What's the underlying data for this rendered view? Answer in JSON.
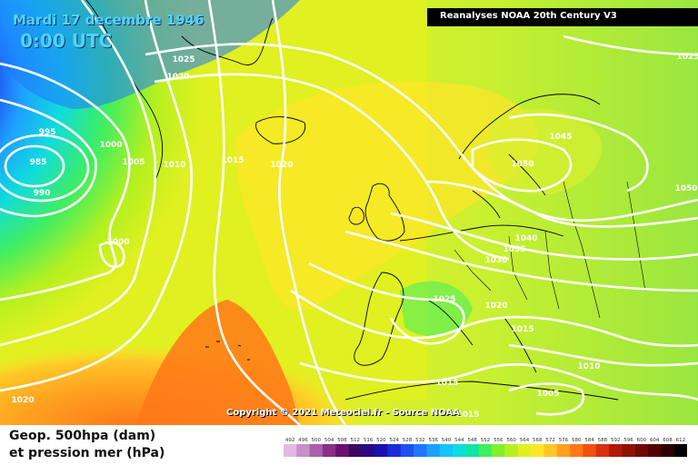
{
  "header": {
    "date_text": "Mardi 17 decembre 1946",
    "time_text": "0:00 UTC",
    "source_label": "Reanalyses NOAA 20th Century V3"
  },
  "copyright": "Copyright © 2021 Meteociel.fr - Source NOAA",
  "legend": {
    "line1": "Geop. 500hpa (dam)",
    "line2": "et pression mer (hPa)",
    "scale_ticks": [
      "492",
      "496",
      "500",
      "504",
      "508",
      "512",
      "516",
      "520",
      "524",
      "528",
      "532",
      "536",
      "540",
      "544",
      "548",
      "552",
      "556",
      "560",
      "564",
      "568",
      "572",
      "576",
      "580",
      "584",
      "588",
      "592",
      "596",
      "600",
      "604",
      "608",
      "612"
    ],
    "scale_colors": [
      "#e5b8e5",
      "#c890c8",
      "#a860a8",
      "#883088",
      "#6a1070",
      "#3a0860",
      "#2a0a80",
      "#1a10b0",
      "#1a2cd8",
      "#1e50f0",
      "#1e78ff",
      "#1ea0ff",
      "#14c4ff",
      "#10dcdc",
      "#10e6a0",
      "#40ee60",
      "#80f030",
      "#b4f020",
      "#e0f020",
      "#ffe628",
      "#ffc828",
      "#ffa020",
      "#ff7818",
      "#f05010",
      "#d83010",
      "#b01808",
      "#901000",
      "#700800",
      "#500000",
      "#300000",
      "#000000"
    ]
  },
  "map_colors": {
    "ocean_deep": "#ff8c2a",
    "east_green": "#9ae640",
    "low_core": "#6a1070",
    "isobar": "#ffffff",
    "coast": "#000000"
  },
  "isobar_labels": [
    "995",
    "985",
    "990",
    "1000",
    "1005",
    "1010",
    "1015",
    "1020",
    "1025",
    "1020",
    "1000",
    "1025",
    "1045",
    "1050",
    "1050",
    "1040",
    "1035",
    "1030",
    "1025",
    "1020",
    "1015",
    "1015",
    "1010",
    "1005",
    "1015",
    "1020"
  ]
}
